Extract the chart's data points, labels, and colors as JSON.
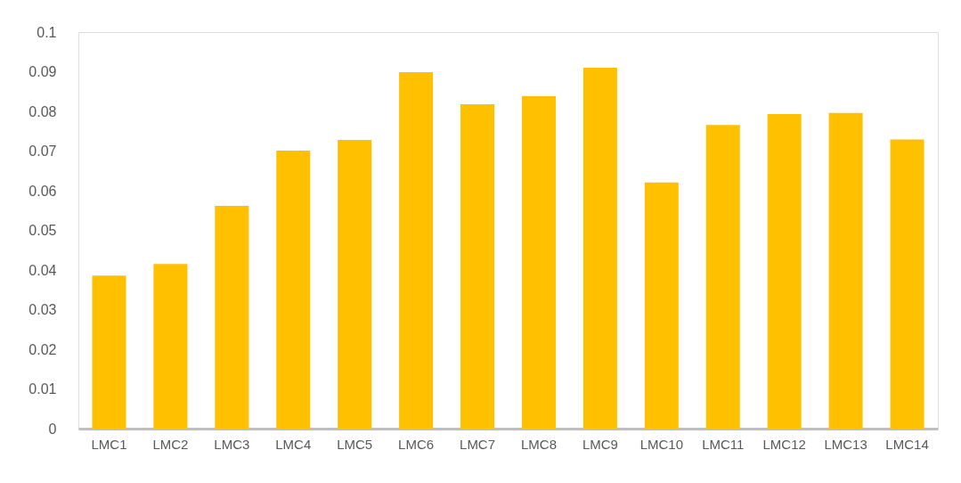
{
  "chart_data": {
    "type": "bar",
    "categories": [
      "LMC1",
      "LMC2",
      "LMC3",
      "LMC4",
      "LMC5",
      "LMC6",
      "LMC7",
      "LMC8",
      "LMC9",
      "LMC10",
      "LMC11",
      "LMC12",
      "LMC13",
      "LMC14"
    ],
    "values": [
      0.0386,
      0.0415,
      0.0562,
      0.0701,
      0.0728,
      0.0899,
      0.0818,
      0.0839,
      0.091,
      0.0621,
      0.0766,
      0.0793,
      0.0796,
      0.0729
    ],
    "color": "#ffc000",
    "ylim": [
      0,
      0.1
    ],
    "yticks": [
      0,
      0.01,
      0.02,
      0.03,
      0.04,
      0.05,
      0.06,
      0.07,
      0.08,
      0.09,
      0.1
    ],
    "grid": false
  }
}
